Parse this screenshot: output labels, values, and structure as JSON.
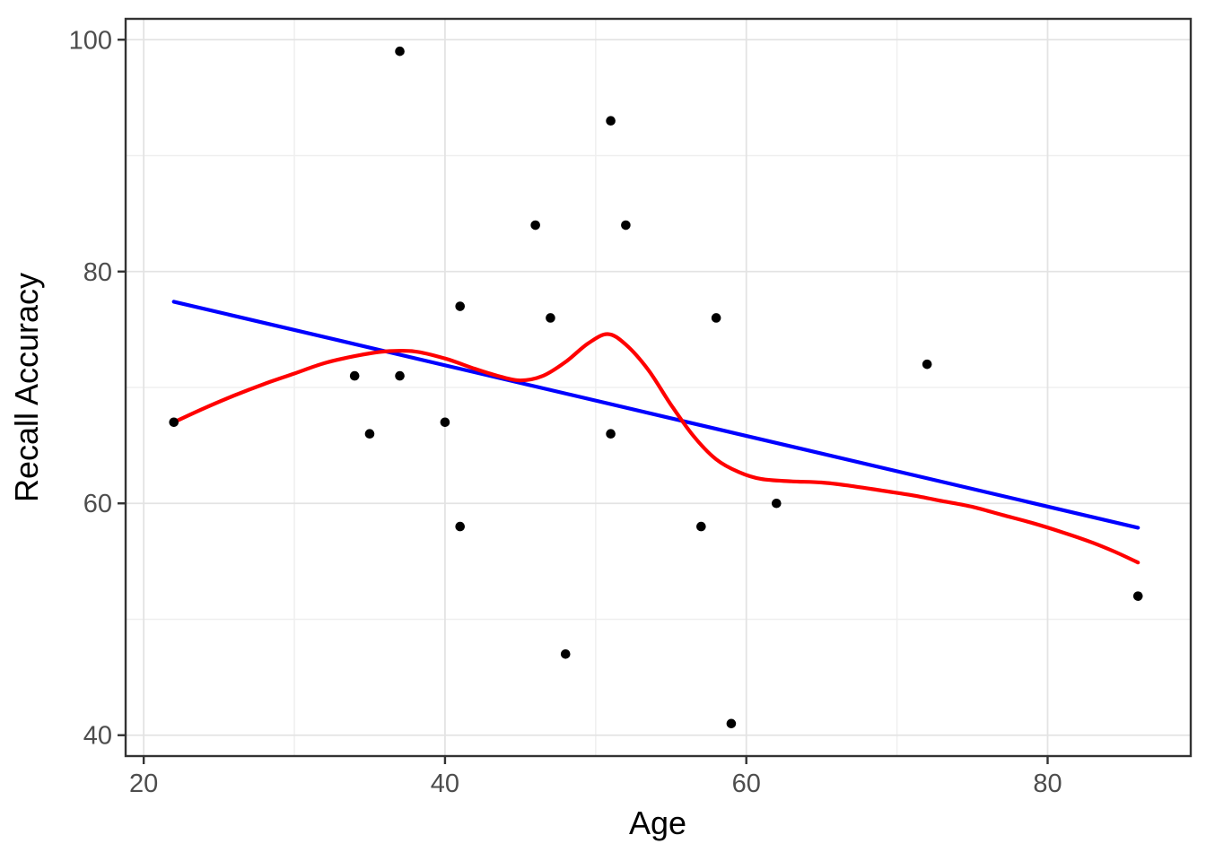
{
  "figure": {
    "background": "#FFFFFF",
    "panel_background": "#FFFFFF",
    "panel_border_color": "#333333",
    "grid_major_color": "#E3E3E3",
    "grid_minor_color": "#EFEFEF",
    "tick_color": "#333333",
    "tick_label_color": "#4D4D4D",
    "axis_title_color": "#000000",
    "point_color": "#000000",
    "linear_fit_color": "#0000FF",
    "loess_fit_color": "#FF0000"
  },
  "chart_data": {
    "type": "scatter",
    "title": "",
    "xlabel": "Age",
    "ylabel": "Recall Accuracy",
    "xlim": [
      18.8,
      89.5
    ],
    "ylim": [
      38.2,
      101.8
    ],
    "x_major_ticks": [
      20,
      40,
      60,
      80
    ],
    "x_minor_ticks": [
      30,
      50,
      70
    ],
    "y_major_ticks": [
      40,
      60,
      80,
      100
    ],
    "y_minor_ticks": [
      50,
      70,
      90
    ],
    "x_tick_labels": [
      "20",
      "40",
      "60",
      "80"
    ],
    "y_tick_labels": [
      "40",
      "60",
      "80",
      "100"
    ],
    "grid": true,
    "legend_position": "none",
    "points": [
      [
        22,
        67
      ],
      [
        34,
        71
      ],
      [
        35,
        66
      ],
      [
        37,
        99
      ],
      [
        37,
        71
      ],
      [
        40,
        67
      ],
      [
        41,
        77
      ],
      [
        41,
        58
      ],
      [
        46,
        84
      ],
      [
        47,
        76
      ],
      [
        48,
        47
      ],
      [
        51,
        93
      ],
      [
        51,
        66
      ],
      [
        52,
        84
      ],
      [
        57,
        58
      ],
      [
        58,
        76
      ],
      [
        59,
        41
      ],
      [
        62,
        60
      ],
      [
        72,
        72
      ],
      [
        86,
        52
      ]
    ],
    "series": [
      {
        "name": "linear-fit",
        "kind": "line",
        "color": "#0000FF",
        "points": [
          [
            22,
            77.4
          ],
          [
            86,
            57.9
          ]
        ]
      },
      {
        "name": "loess-fit",
        "kind": "smooth",
        "color": "#FF0000",
        "points": [
          [
            22,
            67.0
          ],
          [
            24,
            68.2
          ],
          [
            26,
            69.3
          ],
          [
            28,
            70.3
          ],
          [
            30,
            71.2
          ],
          [
            32,
            72.1
          ],
          [
            34,
            72.7
          ],
          [
            36,
            73.1
          ],
          [
            38,
            73.1
          ],
          [
            40,
            72.5
          ],
          [
            42,
            71.6
          ],
          [
            43.5,
            71.0
          ],
          [
            45,
            70.6
          ],
          [
            46.5,
            71.0
          ],
          [
            48,
            72.2
          ],
          [
            49.5,
            73.8
          ],
          [
            50.8,
            74.6
          ],
          [
            52,
            73.7
          ],
          [
            53.5,
            71.5
          ],
          [
            55,
            68.5
          ],
          [
            56.5,
            65.8
          ],
          [
            58,
            63.8
          ],
          [
            59.5,
            62.7
          ],
          [
            61,
            62.1
          ],
          [
            63,
            61.9
          ],
          [
            65,
            61.8
          ],
          [
            67,
            61.5
          ],
          [
            69,
            61.1
          ],
          [
            71,
            60.7
          ],
          [
            73,
            60.2
          ],
          [
            75,
            59.7
          ],
          [
            77,
            59.0
          ],
          [
            79,
            58.3
          ],
          [
            81,
            57.5
          ],
          [
            83,
            56.6
          ],
          [
            84.5,
            55.8
          ],
          [
            86,
            54.9
          ]
        ]
      }
    ]
  }
}
